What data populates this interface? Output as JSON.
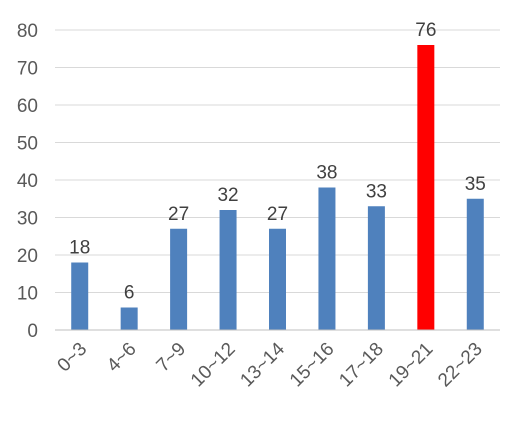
{
  "chart_data": {
    "type": "bar",
    "title": "",
    "xlabel": "",
    "ylabel": "",
    "categories": [
      "0~3",
      "4~6",
      "7~9",
      "10~12",
      "13~14",
      "15~16",
      "17~18",
      "19~21",
      "22~23"
    ],
    "values": [
      18,
      6,
      27,
      32,
      27,
      38,
      33,
      76,
      35
    ],
    "ylim": [
      0,
      80
    ],
    "yticks": [
      "0",
      "10",
      "20",
      "30",
      "40",
      "50",
      "60",
      "70",
      "80"
    ],
    "grid": true,
    "legend": "none",
    "colors": {
      "default": "#4f81bd",
      "highlight": "#ff0000"
    },
    "highlight_index": 7
  }
}
